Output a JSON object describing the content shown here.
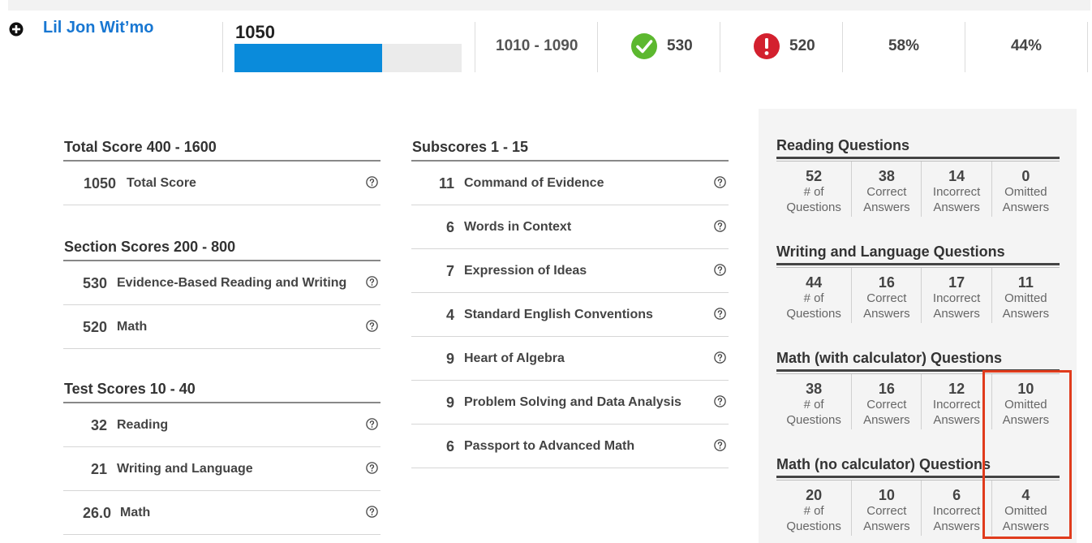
{
  "student": {
    "name": "Lil Jon Wit’mo",
    "score": "1050",
    "score_fraction_of_bar": 0.65,
    "range": "1010 - 1090",
    "ebrw": "530",
    "math": "520",
    "pct_a": "58%",
    "pct_b": "44%"
  },
  "colors": {
    "accent_blue": "#1877d2",
    "bar_blue": "#0a8bdb",
    "check_green": "#5cb82f",
    "alert_red": "#d3202e",
    "highlight_red": "#e03b1c"
  },
  "left_column": [
    {
      "title": "Total Score 400 - 1600",
      "rows": [
        {
          "value": "1050",
          "label": "Total Score"
        }
      ]
    },
    {
      "title": "Section Scores 200 - 800",
      "rows": [
        {
          "value": "530",
          "label": "Evidence-Based Reading and Writing"
        },
        {
          "value": "520",
          "label": "Math"
        }
      ]
    },
    {
      "title": "Test Scores 10 - 40",
      "rows": [
        {
          "value": "32",
          "label": "Reading"
        },
        {
          "value": "21",
          "label": "Writing and Language"
        },
        {
          "value": "26.0",
          "label": "Math"
        }
      ]
    }
  ],
  "subscores": {
    "title": "Subscores 1 - 15",
    "rows": [
      {
        "value": "11",
        "label": "Command of Evidence"
      },
      {
        "value": "6",
        "label": "Words in Context"
      },
      {
        "value": "7",
        "label": "Expression of Ideas"
      },
      {
        "value": "4",
        "label": "Standard English Conventions"
      },
      {
        "value": "9",
        "label": "Heart of Algebra"
      },
      {
        "value": "9",
        "label": "Problem Solving and Data Analysis"
      },
      {
        "value": "6",
        "label": "Passport to Advanced Math"
      }
    ]
  },
  "question_groups": [
    {
      "title": "Reading Questions",
      "total": "52",
      "correct": "38",
      "incorrect": "14",
      "omitted": "0"
    },
    {
      "title": "Writing and Language Questions",
      "total": "44",
      "correct": "16",
      "incorrect": "17",
      "omitted": "11"
    },
    {
      "title": "Math (with calculator) Questions",
      "total": "38",
      "correct": "16",
      "incorrect": "12",
      "omitted": "10"
    },
    {
      "title": "Math (no calculator) Questions",
      "total": "20",
      "correct": "10",
      "incorrect": "6",
      "omitted": "4"
    }
  ],
  "question_labels": {
    "total": "# of\nQuestions",
    "correct": "Correct\nAnswers",
    "incorrect": "Incorrect\nAnswers",
    "omitted": "Omitted\nAnswers"
  }
}
